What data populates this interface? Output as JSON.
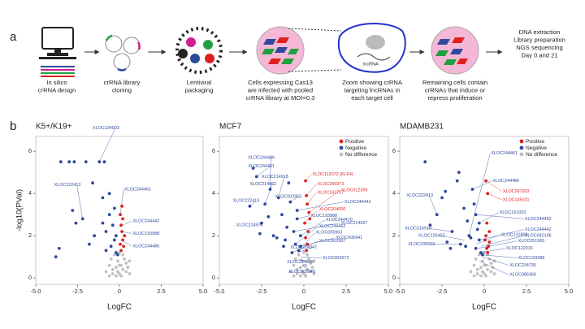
{
  "diagram": {
    "panel_a": "a",
    "panel_b": "b",
    "lncrna": "lncRNA",
    "steps": [
      {
        "lines": [
          "In silico",
          "crRNA design"
        ]
      },
      {
        "lines": [
          "crRNA library",
          "cloning"
        ]
      },
      {
        "lines": [
          "Lentiviral",
          "packaging"
        ]
      },
      {
        "lines": [
          "Cells expressing Cas13",
          "are infected with pooled",
          "crRNA library at MOI=0.3"
        ]
      },
      {
        "lines": [
          "Zoom showing crRNA",
          "targeting lncRNAs in",
          "each target cell"
        ]
      },
      {
        "lines": [
          "Remaining cells contain",
          "crRNAs that induce or",
          "repress proliferation"
        ]
      },
      {
        "lines": [
          "DNA extraction",
          "Library preparation",
          "NGS sequencing",
          "Day 0 and 21"
        ]
      }
    ]
  },
  "chart_data": [
    {
      "type": "scatter",
      "title": "K5+/K19+",
      "xlabel": "LogFC",
      "ylabel": "-log10(PVal)",
      "xlim": [
        -5,
        5
      ],
      "ylim": [
        -0.3,
        6.7
      ],
      "xticks": [
        {
          "value": -5,
          "label": "-5.0"
        },
        {
          "value": -2.5,
          "label": "-2.5"
        },
        0,
        2.5,
        {
          "value": 5,
          "label": "5.0"
        }
      ],
      "yticks": [
        0,
        2,
        4,
        6
      ],
      "series": [
        {
          "color": "#c0c0c0",
          "x": [
            -0.8,
            -0.6,
            -0.5,
            -0.4,
            -0.3,
            -0.2,
            -0.1,
            0,
            0.1,
            0.2,
            0.3,
            0.4,
            0.5,
            0.6,
            -0.2,
            0,
            0.2,
            -0.4,
            0.4,
            0,
            -0.1,
            0.1,
            0.6,
            -0.6
          ],
          "values": [
            0.3,
            0.6,
            0.9,
            0.2,
            1.1,
            0.5,
            0.8,
            0.2,
            0.6,
            0.4,
            0.9,
            0.3,
            0.5,
            0.2,
            0.1,
            1.2,
            1.1,
            0.4,
            0.7,
            0.6,
            0.3,
            0.1,
            0.8,
            0.1
          ]
        },
        {
          "color": "#2e4a9e",
          "x": [
            -3.8,
            -3.5,
            -3.0,
            -2.8,
            -2.6,
            -2.2,
            -2.0,
            -1.6,
            -1.5,
            -1.2,
            -1.0,
            -0.9,
            -0.8,
            -0.6,
            -0.5,
            -0.4,
            -0.3,
            -0.3,
            -0.2,
            -0.2,
            -0.1,
            -0.6,
            -1.8,
            -2.7,
            -3.6,
            -1.0,
            -0.8
          ],
          "values": [
            1.0,
            5.5,
            5.5,
            3.2,
            2.6,
            2.8,
            5.5,
            4.5,
            2.0,
            5.5,
            3.8,
            5.5,
            2.2,
            3.0,
            1.5,
            2.5,
            1.8,
            3.3,
            1.2,
            2.0,
            1.1,
            4.0,
            1.6,
            5.5,
            1.4,
            2.6,
            1.3
          ]
        },
        {
          "color": "#e02020",
          "x": [
            0.05,
            0.1,
            0.15,
            0.2,
            0.25,
            0.1,
            0.2,
            0.3,
            0.15,
            0.05
          ],
          "values": [
            3.0,
            2.5,
            2.2,
            1.8,
            1.5,
            1.3,
            2.8,
            2.0,
            3.4,
            1.6
          ]
        }
      ],
      "annotations": [
        {
          "text": "XLOC134003",
          "x": -1.2,
          "y": 5.5,
          "color": "#2e4a9e"
        },
        {
          "text": "XLOC222413",
          "x": -2.2,
          "y": 2.8,
          "color": "#2e4a9e"
        },
        {
          "text": "XLOC244461",
          "x": 0.05,
          "y": 3.0,
          "color": "#2e4a9e"
        },
        {
          "text": "XLOC244442",
          "x": 0.2,
          "y": 2.5,
          "color": "#2e4a9e"
        },
        {
          "text": "XLOC193988",
          "x": 0.15,
          "y": 2.2,
          "color": "#2e4a9e"
        },
        {
          "text": "XLOC244486",
          "x": 0.1,
          "y": 1.8,
          "color": "#2e4a9e"
        }
      ]
    },
    {
      "type": "scatter",
      "title": "MCF7",
      "xlabel": "LogFC",
      "legend": "upper right",
      "xlim": [
        -5,
        5
      ],
      "ylim": [
        -0.3,
        6.7
      ],
      "xticks": [
        {
          "value": -5,
          "label": "-5.0"
        },
        {
          "value": -2.5,
          "label": "-2.5"
        },
        0,
        2.5,
        {
          "value": 5,
          "label": "5.0"
        }
      ],
      "yticks": [
        0,
        2,
        4,
        6
      ],
      "series": [
        {
          "name": "No difference",
          "color": "#c0c0c0",
          "x": [
            -0.8,
            -0.6,
            -0.5,
            -0.4,
            -0.3,
            -0.2,
            -0.1,
            0,
            0.1,
            0.2,
            0.3,
            0.4,
            0.5,
            0.6,
            -0.2,
            0,
            0.2,
            -0.4,
            0.4,
            0,
            -0.1,
            0.1,
            0.6,
            -0.6
          ],
          "values": [
            0.3,
            0.6,
            0.9,
            0.2,
            1.1,
            0.5,
            0.8,
            0.2,
            0.6,
            0.4,
            0.9,
            0.3,
            0.5,
            0.2,
            0.1,
            1.2,
            1.1,
            0.4,
            0.7,
            0.6,
            0.3,
            0.1,
            0.8,
            0.1
          ]
        },
        {
          "name": "Negative",
          "color": "#2e4a9e",
          "x": [
            -3.0,
            -2.8,
            -2.5,
            -2.3,
            -2.0,
            -1.8,
            -1.5,
            -1.3,
            -1.0,
            -0.8,
            -0.6,
            -0.5,
            -0.4,
            -0.3,
            -0.2,
            -1.2,
            -2.1,
            -3.2,
            -1.6,
            -0.9,
            -0.7,
            -0.4,
            -0.2,
            -1.1,
            -2.6
          ],
          "values": [
            5.2,
            4.8,
            2.6,
            3.5,
            4.2,
            2.0,
            3.8,
            3.0,
            2.4,
            3.6,
            2.2,
            1.6,
            2.8,
            1.3,
            2.0,
            1.5,
            2.9,
            3.4,
            1.9,
            4.5,
            1.2,
            3.2,
            1.5,
            1.8,
            2.1
          ]
        },
        {
          "name": "Positive",
          "color": "#e02020",
          "x": [
            0.1,
            0.15,
            0.2,
            0.3,
            0.05,
            0.25,
            0.1,
            0.2,
            0.35,
            0.15
          ],
          "values": [
            4.6,
            3.9,
            3.5,
            3.1,
            2.6,
            2.2,
            1.9,
            1.6,
            2.8,
            1.3
          ]
        }
      ],
      "annotations": [
        {
          "text": "XLOC244486",
          "x": -2.0,
          "y": 4.2,
          "color": "#2e4a9e"
        },
        {
          "text": "XLOC244461",
          "x": -2.8,
          "y": 4.8,
          "color": "#2e4a9e"
        },
        {
          "text": "XLOC214918",
          "x": -1.5,
          "y": 3.8,
          "color": "#2e4a9e"
        },
        {
          "text": "XLOC214962",
          "x": -2.3,
          "y": 3.5,
          "color": "#2e4a9e"
        },
        {
          "text": "XLOC222413",
          "x": -3.2,
          "y": 3.4,
          "color": "#2e4a9e"
        },
        {
          "text": "XLOC002955",
          "x": -0.8,
          "y": 3.6,
          "color": "#2e4a9e"
        },
        {
          "text": "XLOC214974",
          "x": -2.5,
          "y": 2.6,
          "color": "#2e4a9e"
        },
        {
          "text": "XLOC112072 (KLF4)",
          "x": 0.1,
          "y": 4.6,
          "color": "#e02020"
        },
        {
          "text": "XLOC200373",
          "x": 0.15,
          "y": 3.9,
          "color": "#e02020"
        },
        {
          "text": "XLOC163717",
          "x": 0.2,
          "y": 3.5,
          "color": "#e02020"
        },
        {
          "text": "XLOC012359",
          "x": 0.3,
          "y": 3.1,
          "color": "#e02020"
        },
        {
          "text": "XLOC244442",
          "x": -0.4,
          "y": 3.2,
          "color": "#2e4a9e"
        },
        {
          "text": "XLOC204000",
          "x": 0.05,
          "y": 2.6,
          "color": "#e02020"
        },
        {
          "text": "XLOC193988",
          "x": -0.4,
          "y": 2.8,
          "color": "#2e4a9e"
        },
        {
          "text": "XLOC244470",
          "x": -0.2,
          "y": 2.0,
          "color": "#2e4a9e"
        },
        {
          "text": "XLOC214937",
          "x": -0.6,
          "y": 2.2,
          "color": "#2e4a9e"
        },
        {
          "text": "XLOC244462",
          "x": -0.5,
          "y": 1.6,
          "color": "#2e4a9e"
        },
        {
          "text": "XLOC005963",
          "x": -0.3,
          "y": 1.3,
          "color": "#2e4a9e"
        },
        {
          "text": "XLOC005941",
          "x": -0.2,
          "y": 1.5,
          "color": "#2e4a9e"
        },
        {
          "text": "XLOC002957",
          "x": -0.7,
          "y": 1.2,
          "color": "#2e4a9e"
        },
        {
          "text": "XLOC214947",
          "x": -0.4,
          "y": 1.2,
          "color": "#2e4a9e"
        },
        {
          "text": "XLOC002672",
          "x": -0.2,
          "y": 1.0,
          "color": "#2e4a9e"
        },
        {
          "text": "XLOC214895",
          "x": -0.3,
          "y": 0.9,
          "color": "#2e4a9e"
        },
        {
          "text": "XLOC005948",
          "x": -0.1,
          "y": 0.6,
          "color": "#2e4a9e"
        }
      ]
    },
    {
      "type": "scatter",
      "title": "MDAMB231",
      "xlabel": "LogFC",
      "legend": "upper right",
      "xlim": [
        -5,
        5
      ],
      "ylim": [
        -0.3,
        6.7
      ],
      "xticks": [
        {
          "value": -5,
          "label": "-5.0"
        },
        {
          "value": -2.5,
          "label": "-2.5"
        },
        0,
        2.5,
        {
          "value": 5,
          "label": "5.0"
        }
      ],
      "yticks": [
        0,
        2,
        4,
        6
      ],
      "series": [
        {
          "name": "No difference",
          "color": "#c0c0c0",
          "x": [
            -0.8,
            -0.6,
            -0.5,
            -0.4,
            -0.3,
            -0.2,
            -0.1,
            0,
            0.1,
            0.2,
            0.3,
            0.4,
            0.5,
            0.6,
            -0.2,
            0,
            0.2,
            -0.4,
            0.4,
            0,
            -0.1,
            0.1,
            0.6,
            -0.6
          ],
          "values": [
            0.3,
            0.6,
            0.9,
            0.2,
            1.1,
            0.5,
            0.8,
            0.2,
            0.6,
            0.4,
            0.9,
            0.3,
            0.5,
            0.2,
            0.1,
            1.2,
            1.1,
            0.4,
            0.7,
            0.6,
            0.3,
            0.1,
            0.8,
            0.1
          ]
        },
        {
          "name": "Negative",
          "color": "#2e4a9e",
          "x": [
            -3.2,
            -2.8,
            -2.5,
            -2.2,
            -1.9,
            -1.6,
            -1.4,
            -1.2,
            -1.0,
            -0.8,
            -0.6,
            -0.5,
            -0.4,
            -0.3,
            -0.2,
            -1.5,
            -2.0,
            -3.5,
            -0.7,
            -1.1,
            -0.9,
            -0.3,
            -2.3,
            -0.5,
            -0.1
          ],
          "values": [
            2.5,
            3.0,
            3.8,
            1.7,
            2.2,
            4.6,
            1.6,
            3.3,
            2.7,
            1.9,
            3.5,
            1.4,
            2.3,
            1.8,
            1.2,
            5.0,
            1.4,
            5.5,
            4.2,
            1.5,
            2.0,
            2.6,
            4.1,
            3.0,
            1.1
          ]
        },
        {
          "name": "Positive",
          "color": "#e02020",
          "x": [
            0.1,
            0.2,
            0.15,
            0.3,
            0.05,
            0.25,
            0.1,
            0.2,
            0.3,
            0.15
          ],
          "values": [
            4.6,
            4.0,
            2.6,
            2.2,
            1.8,
            1.5,
            2.0,
            1.2,
            1.7,
            1.4
          ]
        }
      ],
      "annotations": [
        {
          "text": "XLOC244461",
          "x": -0.9,
          "y": 2.0,
          "color": "#2e4a9e"
        },
        {
          "text": "XLOC244486",
          "x": -0.7,
          "y": 4.2,
          "color": "#2e4a9e"
        },
        {
          "text": "XLOC297303",
          "x": 0.1,
          "y": 4.6,
          "color": "#e02020"
        },
        {
          "text": "XLOC145021",
          "x": 0.2,
          "y": 4.0,
          "color": "#e02020"
        },
        {
          "text": "XLOC222413",
          "x": -2.8,
          "y": 3.0,
          "color": "#2e4a9e"
        },
        {
          "text": "XLOC161002",
          "x": -0.3,
          "y": 2.6,
          "color": "#2e4a9e"
        },
        {
          "text": "XLOC244462",
          "x": -0.5,
          "y": 3.0,
          "color": "#2e4a9e"
        },
        {
          "text": "XLOC214916",
          "x": -1.9,
          "y": 2.2,
          "color": "#2e4a9e"
        },
        {
          "text": "XLOC126453",
          "x": -1.2,
          "y": 1.8,
          "color": "#2e4a9e"
        },
        {
          "text": "XLOC244442",
          "x": -0.3,
          "y": 1.8,
          "color": "#2e4a9e"
        },
        {
          "text": "XLOC042196",
          "x": -0.2,
          "y": 1.5,
          "color": "#2e4a9e"
        },
        {
          "text": "XLOC051965",
          "x": -0.4,
          "y": 1.4,
          "color": "#2e4a9e"
        },
        {
          "text": "XLOC131869",
          "x": -0.5,
          "y": 1.6,
          "color": "#2e4a9e"
        },
        {
          "text": "XLOC122016",
          "x": -0.3,
          "y": 1.2,
          "color": "#2e4a9e"
        },
        {
          "text": "XLOC205563",
          "x": -1.4,
          "y": 1.6,
          "color": "#2e4a9e"
        },
        {
          "text": "XLOC193988",
          "x": -0.2,
          "y": 1.1,
          "color": "#2e4a9e"
        },
        {
          "text": "XLOC234735",
          "x": -0.1,
          "y": 1.0,
          "color": "#2e4a9e"
        },
        {
          "text": "XLOC086366",
          "x": -0.3,
          "y": 0.8,
          "color": "#2e4a9e"
        }
      ]
    }
  ]
}
